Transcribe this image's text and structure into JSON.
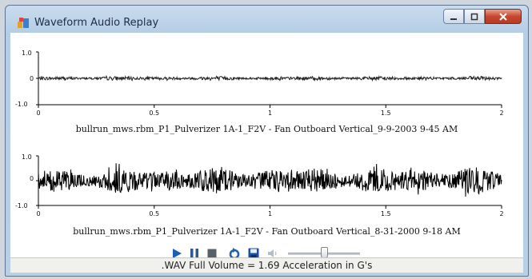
{
  "window": {
    "title": "Waveform Audio Replay"
  },
  "charts": [
    {
      "ytick_top": "1.0",
      "ytick_mid": "0",
      "ytick_bottom": "-1.0",
      "xticks": [
        "0",
        "0.5",
        "1",
        "1.5",
        "2"
      ],
      "caption": "bullrun_mws.rbm_P1_Pulverizer 1A-1_F2V - Fan Outboard Vertical_9-9-2003 9-45 AM"
    },
    {
      "ytick_top": "1.0",
      "ytick_mid": "0",
      "ytick_bottom": "-1.0",
      "xticks": [
        "0",
        "0.5",
        "1",
        "1.5",
        "2"
      ],
      "caption": "bullrun_mws.rbm_P1_Pulverizer 1A-1_F2V - Fan Outboard Vertical_8-31-2000 9-18 AM"
    }
  ],
  "chart_data": [
    {
      "type": "line",
      "x_range": [
        0,
        2
      ],
      "ylim": [
        -1,
        1
      ],
      "amplitude": 0.08,
      "title": "bullrun_mws.rbm_P1_Pulverizer 1A-1_F2V - Fan Outboard Vertical_9-9-2003 9-45 AM"
    },
    {
      "type": "line",
      "x_range": [
        0,
        2
      ],
      "ylim": [
        -1,
        1
      ],
      "amplitude": 0.55,
      "title": "bullrun_mws.rbm_P1_Pulverizer 1A-1_F2V - Fan Outboard Vertical_8-31-2000 9-18 AM"
    }
  ],
  "controls": {
    "volume_level": 0.5,
    "colors": {
      "play": "#1c5fb8",
      "pause": "#2c5a99",
      "stop": "#58606a",
      "refresh": "#1f62b4",
      "save": "#1d4fa0"
    }
  },
  "status": {
    "text": ".WAV Full Volume = 1.69 Acceleration in G's"
  }
}
